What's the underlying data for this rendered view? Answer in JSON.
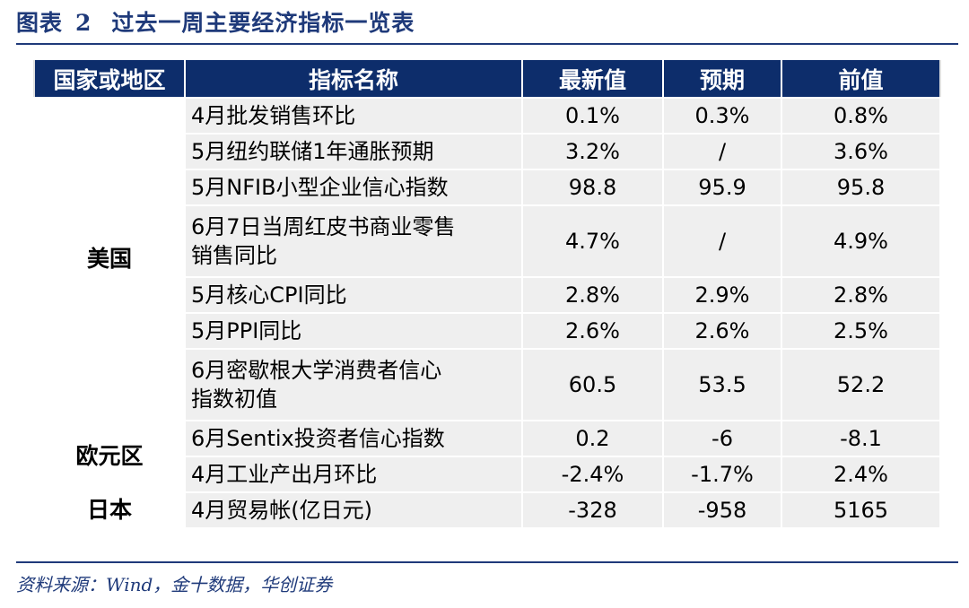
{
  "figure": {
    "label": "图表",
    "number": "2",
    "title": "过去一周主要经济指标一览表"
  },
  "columns": [
    "国家或地区",
    "指标名称",
    "最新值",
    "预期",
    "前值"
  ],
  "regions": {
    "us": "美国",
    "eu": "欧元区",
    "jp": "日本"
  },
  "rows": [
    {
      "indicator": "4月批发销售环比",
      "latest": "0.1%",
      "expected": "0.3%",
      "previous": "0.8%"
    },
    {
      "indicator": "5月纽约联储1年通胀预期",
      "latest": "3.2%",
      "expected": "/",
      "previous": "3.6%"
    },
    {
      "indicator": "5月NFIB小型企业信心指数",
      "latest": "98.8",
      "expected": "95.9",
      "previous": "95.8"
    },
    {
      "indicator": "6月7日当周红皮书商业零售",
      "indicator_line2": "销售同比",
      "latest": "4.7%",
      "expected": "/",
      "previous": "4.9%"
    },
    {
      "indicator": "5月核心CPI同比",
      "latest": "2.8%",
      "expected": "2.9%",
      "previous": "2.8%"
    },
    {
      "indicator": "5月PPI同比",
      "latest": "2.6%",
      "expected": "2.6%",
      "previous": "2.5%"
    },
    {
      "indicator": "6月密歇根大学消费者信心",
      "indicator_line2": "指数初值",
      "latest": "60.5",
      "expected": "53.5",
      "previous": "52.2"
    },
    {
      "indicator": "6月Sentix投资者信心指数",
      "latest": "0.2",
      "expected": "-6",
      "previous": "-8.1"
    },
    {
      "indicator": "4月工业产出月环比",
      "latest": "-2.4%",
      "expected": "-1.7%",
      "previous": "2.4%"
    },
    {
      "indicator": "4月贸易帐(亿日元)",
      "latest": "-328",
      "expected": "-958",
      "previous": "5165"
    }
  ],
  "source": "资料来源：Wind，金十数据，华创证券"
}
